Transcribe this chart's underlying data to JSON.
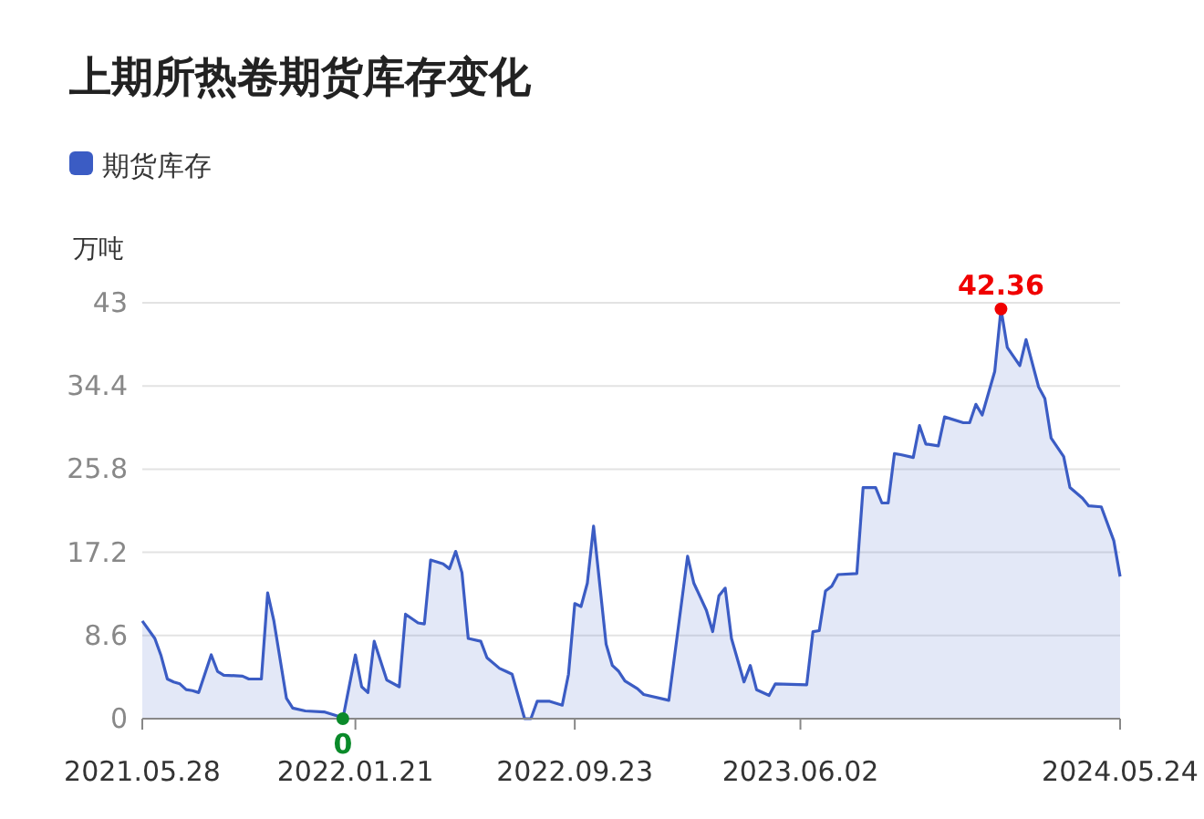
{
  "chart_data": {
    "type": "area",
    "title": "上期所热卷期货库存变化",
    "ylabel": "万吨",
    "legend": "top left",
    "grid": "y",
    "marker": "none",
    "xlim": [
      "2021-05-28",
      "2024-05-24"
    ],
    "xticks": [
      {
        "value": "2021-05-28",
        "label": "2021.05.28"
      },
      {
        "value": "2022-01-21",
        "label": "2022.01.21"
      },
      {
        "value": "2022-09-23",
        "label": "2022.09.23"
      },
      {
        "value": "2023-06-02",
        "label": "2023.06.02"
      },
      {
        "value": "2024-05-24",
        "label": "2024.05.24"
      }
    ],
    "ylim": [
      0,
      43
    ],
    "yticks": [
      0,
      8.6,
      17.2,
      25.8,
      34.4,
      43
    ],
    "annotations": [
      {
        "text": "42.36",
        "x": "2024-01-12",
        "y": 42.36
      },
      {
        "text": "0",
        "x": "2022-01-07",
        "y": 0
      }
    ],
    "x": [
      "2021-05-28",
      "2021-06-11",
      "2021-06-18",
      "2021-06-25",
      "2021-07-02",
      "2021-07-09",
      "2021-07-16",
      "2021-07-23",
      "2021-07-30",
      "2021-08-13",
      "2021-08-20",
      "2021-08-27",
      "2021-09-17",
      "2021-09-24",
      "2021-10-08",
      "2021-10-15",
      "2021-10-22",
      "2021-11-05",
      "2021-11-12",
      "2021-11-26",
      "2021-12-17",
      "2021-12-31",
      "2022-01-07",
      "2022-01-21",
      "2022-01-28",
      "2022-02-04",
      "2022-02-11",
      "2022-02-25",
      "2022-03-11",
      "2022-03-18",
      "2022-04-01",
      "2022-04-08",
      "2022-04-15",
      "2022-04-29",
      "2022-05-06",
      "2022-05-13",
      "2022-05-20",
      "2022-05-27",
      "2022-06-10",
      "2022-06-17",
      "2022-07-01",
      "2022-07-08",
      "2022-07-15",
      "2022-07-29",
      "2022-08-05",
      "2022-08-12",
      "2022-08-26",
      "2022-09-09",
      "2022-09-16",
      "2022-09-23",
      "2022-09-30",
      "2022-10-07",
      "2022-10-14",
      "2022-10-28",
      "2022-11-04",
      "2022-11-11",
      "2022-11-18",
      "2022-12-02",
      "2022-12-09",
      "2023-01-06",
      "2023-01-27",
      "2023-02-03",
      "2023-02-17",
      "2023-02-24",
      "2023-03-03",
      "2023-03-10",
      "2023-03-17",
      "2023-03-31",
      "2023-04-07",
      "2023-04-14",
      "2023-04-28",
      "2023-05-05",
      "2023-06-09",
      "2023-06-16",
      "2023-06-23",
      "2023-06-30",
      "2023-07-07",
      "2023-07-14",
      "2023-08-04",
      "2023-08-11",
      "2023-08-25",
      "2023-09-01",
      "2023-09-08",
      "2023-09-15",
      "2023-09-22",
      "2023-10-06",
      "2023-10-13",
      "2023-10-20",
      "2023-11-03",
      "2023-11-10",
      "2023-12-01",
      "2023-12-08",
      "2023-12-15",
      "2023-12-22",
      "2024-01-05",
      "2024-01-12",
      "2024-01-19",
      "2024-02-02",
      "2024-02-09",
      "2024-02-23",
      "2024-03-01",
      "2024-03-08",
      "2024-03-22",
      "2024-03-29",
      "2024-04-12",
      "2024-04-19",
      "2024-05-03",
      "2024-05-17",
      "2024-05-24"
    ],
    "series": [
      {
        "name": "期货库存",
        "color": "#3b5cc4",
        "values": [
          10.1,
          8.3,
          6.5,
          4.1,
          3.8,
          3.6,
          3.0,
          2.9,
          2.7,
          6.6,
          4.9,
          4.5,
          4.4,
          4.1,
          4.1,
          13.0,
          10.1,
          2.1,
          1.1,
          0.8,
          0.7,
          0.3,
          0,
          6.6,
          3.3,
          2.7,
          8.0,
          4.0,
          3.3,
          10.8,
          9.9,
          9.8,
          16.4,
          16.0,
          15.5,
          17.3,
          15.1,
          8.3,
          8.0,
          6.3,
          5.2,
          4.9,
          4.6,
          0,
          0,
          1.8,
          1.8,
          1.4,
          4.6,
          11.9,
          11.6,
          14.0,
          19.9,
          7.7,
          5.5,
          4.9,
          3.9,
          3.1,
          2.5,
          1.9,
          16.8,
          14.0,
          11.2,
          9.0,
          12.7,
          13.5,
          8.3,
          3.8,
          5.5,
          3.0,
          2.4,
          3.6,
          3.5,
          9.0,
          9.1,
          13.2,
          13.7,
          14.9,
          15.0,
          23.9,
          23.9,
          22.3,
          22.3,
          27.4,
          27.3,
          27.0,
          30.3,
          28.4,
          28.2,
          31.2,
          30.6,
          30.6,
          32.5,
          31.4,
          35.9,
          42.36,
          38.4,
          36.5,
          39.2,
          34.3,
          33.1,
          29.0,
          27.1,
          23.9,
          22.8,
          22.0,
          21.9,
          18.4,
          14.7
        ]
      }
    ]
  }
}
